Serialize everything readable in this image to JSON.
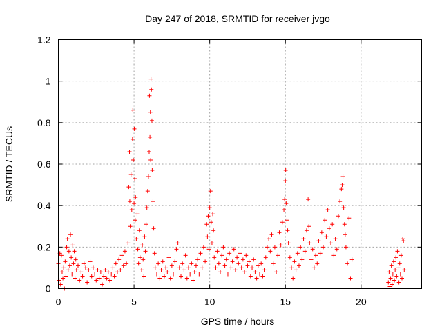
{
  "chart_data": {
    "type": "scatter",
    "title": "Day 247 of 2018, SRMTID for receiver jvgo",
    "xlabel": "GPS time / hours",
    "ylabel": "SRMTID / TECUs",
    "xlim": [
      0,
      24
    ],
    "ylim": [
      0,
      1.2
    ],
    "x_ticks": [
      0,
      5,
      10,
      15,
      20
    ],
    "x_tick_labels": [
      "0",
      "5",
      "10",
      "15",
      "20"
    ],
    "y_ticks": [
      0,
      0.2,
      0.4,
      0.6,
      0.8,
      1,
      1.2
    ],
    "y_tick_labels": [
      "0",
      "0.2",
      "0.4",
      "0.6",
      "0.8",
      "1",
      "1.2"
    ],
    "grid": true,
    "marker": "+",
    "series": [
      {
        "name": "SRMTID",
        "color": "#ff0000",
        "points": [
          [
            0.0,
            0.12
          ],
          [
            0.05,
            0.04
          ],
          [
            0.1,
            0.17
          ],
          [
            0.15,
            0.02
          ],
          [
            0.2,
            0.16
          ],
          [
            0.25,
            0.08
          ],
          [
            0.3,
            0.05
          ],
          [
            0.35,
            0.1
          ],
          [
            0.4,
            0.0
          ],
          [
            0.45,
            0.13
          ],
          [
            0.5,
            0.06
          ],
          [
            0.55,
            0.2
          ],
          [
            0.6,
            0.24
          ],
          [
            0.65,
            0.09
          ],
          [
            0.7,
            0.18
          ],
          [
            0.75,
            0.11
          ],
          [
            0.8,
            0.26
          ],
          [
            0.85,
            0.15
          ],
          [
            0.9,
            0.07
          ],
          [
            0.95,
            0.21
          ],
          [
            1.0,
            0.12
          ],
          [
            1.05,
            0.18
          ],
          [
            1.1,
            0.05
          ],
          [
            1.15,
            0.14
          ],
          [
            1.2,
            0.09
          ],
          [
            1.3,
            0.11
          ],
          [
            1.4,
            0.04
          ],
          [
            1.5,
            0.08
          ],
          [
            1.6,
            0.06
          ],
          [
            1.7,
            0.12
          ],
          [
            1.8,
            0.1
          ],
          [
            1.9,
            0.03
          ],
          [
            2.0,
            0.09
          ],
          [
            2.1,
            0.13
          ],
          [
            2.2,
            0.06
          ],
          [
            2.3,
            0.1
          ],
          [
            2.4,
            0.07
          ],
          [
            2.5,
            0.04
          ],
          [
            2.6,
            0.09
          ],
          [
            2.7,
            0.05
          ],
          [
            2.8,
            0.08
          ],
          [
            2.9,
            0.02
          ],
          [
            3.0,
            0.06
          ],
          [
            3.1,
            0.09
          ],
          [
            3.2,
            0.05
          ],
          [
            3.3,
            0.08
          ],
          [
            3.4,
            0.04
          ],
          [
            3.5,
            0.07
          ],
          [
            3.6,
            0.1
          ],
          [
            3.7,
            0.06
          ],
          [
            3.8,
            0.12
          ],
          [
            3.9,
            0.08
          ],
          [
            4.0,
            0.14
          ],
          [
            4.1,
            0.09
          ],
          [
            4.2,
            0.16
          ],
          [
            4.3,
            0.11
          ],
          [
            4.4,
            0.18
          ],
          [
            4.5,
            0.12
          ],
          [
            4.6,
            0.22
          ],
          [
            4.65,
            0.49
          ],
          [
            4.7,
            0.66
          ],
          [
            4.72,
            0.42
          ],
          [
            4.75,
            0.3
          ],
          [
            4.8,
            0.55
          ],
          [
            4.85,
            0.38
          ],
          [
            4.9,
            0.72
          ],
          [
            4.92,
            0.86
          ],
          [
            4.95,
            0.62
          ],
          [
            5.0,
            0.41
          ],
          [
            5.02,
            0.77
          ],
          [
            5.05,
            0.53
          ],
          [
            5.08,
            0.33
          ],
          [
            5.1,
            0.44
          ],
          [
            5.15,
            0.24
          ],
          [
            5.2,
            0.36
          ],
          [
            5.25,
            0.19
          ],
          [
            5.3,
            0.12
          ],
          [
            5.35,
            0.28
          ],
          [
            5.4,
            0.15
          ],
          [
            5.5,
            0.09
          ],
          [
            5.55,
            0.21
          ],
          [
            5.6,
            0.14
          ],
          [
            5.65,
            0.06
          ],
          [
            5.7,
            0.25
          ],
          [
            5.75,
            0.18
          ],
          [
            5.8,
            0.31
          ],
          [
            5.85,
            0.39
          ],
          [
            5.9,
            0.47
          ],
          [
            5.95,
            0.54
          ],
          [
            6.0,
            0.66
          ],
          [
            6.02,
            0.93
          ],
          [
            6.05,
            0.73
          ],
          [
            6.08,
            0.85
          ],
          [
            6.1,
            0.62
          ],
          [
            6.12,
            1.01
          ],
          [
            6.15,
            0.96
          ],
          [
            6.18,
            0.81
          ],
          [
            6.2,
            0.57
          ],
          [
            6.25,
            0.42
          ],
          [
            6.3,
            0.29
          ],
          [
            6.35,
            0.17
          ],
          [
            6.4,
            0.1
          ],
          [
            6.5,
            0.07
          ],
          [
            6.6,
            0.12
          ],
          [
            6.7,
            0.05
          ],
          [
            6.8,
            0.09
          ],
          [
            6.9,
            0.13
          ],
          [
            7.0,
            0.06
          ],
          [
            7.1,
            0.1
          ],
          [
            7.2,
            0.08
          ],
          [
            7.3,
            0.15
          ],
          [
            7.4,
            0.05
          ],
          [
            7.5,
            0.11
          ],
          [
            7.6,
            0.07
          ],
          [
            7.7,
            0.13
          ],
          [
            7.8,
            0.19
          ],
          [
            7.9,
            0.22
          ],
          [
            8.0,
            0.1
          ],
          [
            8.1,
            0.06
          ],
          [
            8.2,
            0.12
          ],
          [
            8.3,
            0.09
          ],
          [
            8.4,
            0.16
          ],
          [
            8.5,
            0.05
          ],
          [
            8.6,
            0.1
          ],
          [
            8.7,
            0.07
          ],
          [
            8.8,
            0.12
          ],
          [
            8.9,
            0.04
          ],
          [
            9.0,
            0.08
          ],
          [
            9.1,
            0.11
          ],
          [
            9.2,
            0.14
          ],
          [
            9.3,
            0.07
          ],
          [
            9.4,
            0.17
          ],
          [
            9.5,
            0.1
          ],
          [
            9.6,
            0.2
          ],
          [
            9.7,
            0.13
          ],
          [
            9.8,
            0.31
          ],
          [
            9.85,
            0.25
          ],
          [
            9.9,
            0.35
          ],
          [
            9.95,
            0.19
          ],
          [
            10.0,
            0.39
          ],
          [
            10.05,
            0.47
          ],
          [
            10.1,
            0.32
          ],
          [
            10.15,
            0.22
          ],
          [
            10.2,
            0.36
          ],
          [
            10.25,
            0.28
          ],
          [
            10.3,
            0.15
          ],
          [
            10.4,
            0.1
          ],
          [
            10.5,
            0.18
          ],
          [
            10.6,
            0.12
          ],
          [
            10.7,
            0.08
          ],
          [
            10.8,
            0.16
          ],
          [
            10.9,
            0.2
          ],
          [
            11.0,
            0.11
          ],
          [
            11.1,
            0.14
          ],
          [
            11.2,
            0.07
          ],
          [
            11.3,
            0.17
          ],
          [
            11.4,
            0.1
          ],
          [
            11.5,
            0.13
          ],
          [
            11.6,
            0.19
          ],
          [
            11.7,
            0.09
          ],
          [
            11.8,
            0.15
          ],
          [
            11.9,
            0.12
          ],
          [
            12.0,
            0.17
          ],
          [
            12.1,
            0.1
          ],
          [
            12.2,
            0.14
          ],
          [
            12.3,
            0.08
          ],
          [
            12.4,
            0.16
          ],
          [
            12.5,
            0.11
          ],
          [
            12.6,
            0.13
          ],
          [
            12.7,
            0.06
          ],
          [
            12.8,
            0.1
          ],
          [
            12.9,
            0.14
          ],
          [
            13.0,
            0.08
          ],
          [
            13.1,
            0.05
          ],
          [
            13.2,
            0.11
          ],
          [
            13.3,
            0.07
          ],
          [
            13.4,
            0.12
          ],
          [
            13.5,
            0.06
          ],
          [
            13.6,
            0.09
          ],
          [
            13.7,
            0.15
          ],
          [
            13.8,
            0.2
          ],
          [
            13.9,
            0.24
          ],
          [
            14.0,
            0.18
          ],
          [
            14.1,
            0.26
          ],
          [
            14.2,
            0.12
          ],
          [
            14.3,
            0.2
          ],
          [
            14.4,
            0.08
          ],
          [
            14.5,
            0.16
          ],
          [
            14.6,
            0.27
          ],
          [
            14.7,
            0.21
          ],
          [
            14.8,
            0.32
          ],
          [
            14.9,
            0.38
          ],
          [
            14.95,
            0.43
          ],
          [
            15.0,
            0.52
          ],
          [
            15.02,
            0.57
          ],
          [
            15.05,
            0.41
          ],
          [
            15.1,
            0.33
          ],
          [
            15.15,
            0.28
          ],
          [
            15.2,
            0.22
          ],
          [
            15.3,
            0.15
          ],
          [
            15.4,
            0.1
          ],
          [
            15.5,
            0.05
          ],
          [
            15.6,
            0.13
          ],
          [
            15.7,
            0.09
          ],
          [
            15.8,
            0.17
          ],
          [
            15.9,
            0.11
          ],
          [
            16.0,
            0.2
          ],
          [
            16.1,
            0.14
          ],
          [
            16.2,
            0.24
          ],
          [
            16.3,
            0.18
          ],
          [
            16.4,
            0.28
          ],
          [
            16.5,
            0.43
          ],
          [
            16.55,
            0.3
          ],
          [
            16.6,
            0.22
          ],
          [
            16.7,
            0.14
          ],
          [
            16.8,
            0.19
          ],
          [
            16.9,
            0.1
          ],
          [
            17.0,
            0.16
          ],
          [
            17.1,
            0.12
          ],
          [
            17.2,
            0.23
          ],
          [
            17.3,
            0.17
          ],
          [
            17.4,
            0.27
          ],
          [
            17.5,
            0.2
          ],
          [
            17.6,
            0.33
          ],
          [
            17.7,
            0.25
          ],
          [
            17.8,
            0.38
          ],
          [
            17.9,
            0.29
          ],
          [
            18.0,
            0.22
          ],
          [
            18.1,
            0.31
          ],
          [
            18.2,
            0.16
          ],
          [
            18.3,
            0.24
          ],
          [
            18.4,
            0.19
          ],
          [
            18.5,
            0.35
          ],
          [
            18.6,
            0.42
          ],
          [
            18.7,
            0.48
          ],
          [
            18.75,
            0.5
          ],
          [
            18.8,
            0.54
          ],
          [
            18.85,
            0.39
          ],
          [
            18.9,
            0.31
          ],
          [
            18.95,
            0.26
          ],
          [
            19.0,
            0.2
          ],
          [
            19.1,
            0.12
          ],
          [
            19.2,
            0.34
          ],
          [
            19.3,
            0.05
          ],
          [
            19.4,
            0.14
          ],
          [
            21.8,
            0.03
          ],
          [
            21.85,
            0.08
          ],
          [
            21.9,
            0.01
          ],
          [
            21.95,
            0.05
          ],
          [
            22.0,
            0.11
          ],
          [
            22.05,
            0.02
          ],
          [
            22.1,
            0.07
          ],
          [
            22.15,
            0.13
          ],
          [
            22.2,
            0.04
          ],
          [
            22.25,
            0.09
          ],
          [
            22.3,
            0.15
          ],
          [
            22.35,
            0.06
          ],
          [
            22.4,
            0.18
          ],
          [
            22.45,
            0.1
          ],
          [
            22.5,
            0.03
          ],
          [
            22.55,
            0.12
          ],
          [
            22.6,
            0.07
          ],
          [
            22.65,
            0.16
          ],
          [
            22.7,
            0.05
          ],
          [
            22.75,
            0.24
          ],
          [
            22.8,
            0.23
          ],
          [
            22.85,
            0.09
          ]
        ]
      }
    ]
  }
}
